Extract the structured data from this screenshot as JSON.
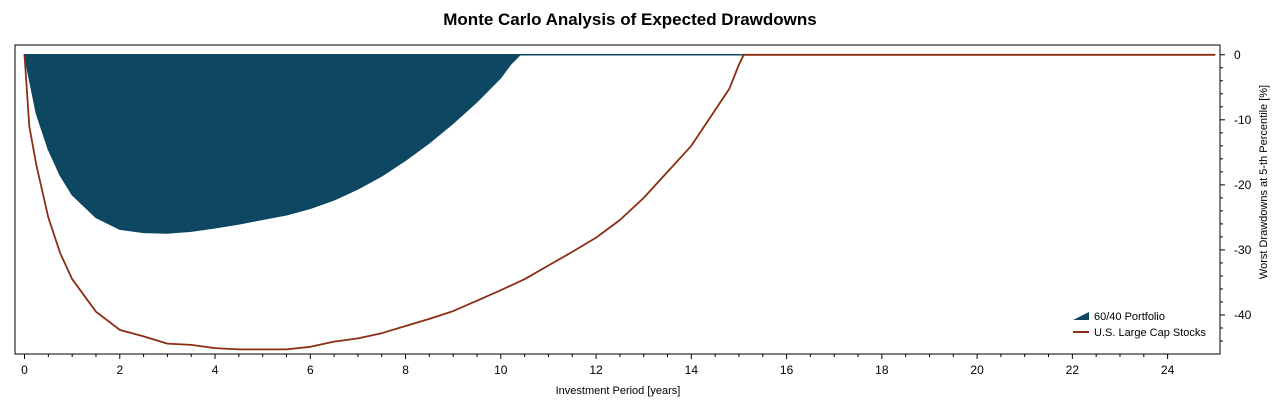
{
  "chart_data": {
    "type": "area",
    "title": "Monte Carlo Analysis of Expected Drawdowns",
    "xlabel": "Investment Period [years]",
    "ylabel": "Worst Drawdowns at 5-th Percentile [%]",
    "xlim": [
      -0.2,
      25.1
    ],
    "ylim": [
      -46,
      1.5
    ],
    "x_ticks": [
      "0",
      "2",
      "4",
      "6",
      "8",
      "10",
      "12",
      "14",
      "16",
      "18",
      "20",
      "22",
      "24"
    ],
    "y_ticks": [
      "0",
      "-10",
      "-20",
      "-30",
      "-40"
    ],
    "y_axis_side": "right",
    "legend_position": "bottom-right",
    "grid": false,
    "series": [
      {
        "name": "60/40 Portfolio",
        "style": "filled area",
        "color": "#0d4762",
        "x": [
          0,
          0.25,
          0.5,
          0.75,
          1,
          1.5,
          2,
          2.5,
          3,
          3.5,
          4,
          4.5,
          5,
          5.5,
          6,
          6.5,
          7,
          7.5,
          8,
          8.5,
          9,
          9.5,
          10,
          10.2,
          10.4,
          10.5,
          25
        ],
        "y": [
          0,
          -9,
          -14.5,
          -18.5,
          -21.5,
          -25,
          -26.8,
          -27.3,
          -27.4,
          -27.1,
          -26.6,
          -26,
          -25.3,
          -24.6,
          -23.6,
          -22.3,
          -20.6,
          -18.6,
          -16.2,
          -13.5,
          -10.5,
          -7.2,
          -3.5,
          -1.5,
          0,
          0,
          0
        ]
      },
      {
        "name": "U.S. Large Cap Stocks",
        "style": "line",
        "color": "#8b2e12",
        "x": [
          0,
          0.1,
          0.25,
          0.5,
          0.75,
          1,
          1.5,
          2,
          2.5,
          3,
          3.5,
          4,
          4.5,
          5,
          5.5,
          6,
          6.5,
          7,
          7.5,
          8,
          8.5,
          9,
          9.5,
          10,
          10.5,
          11,
          11.5,
          12,
          12.5,
          13,
          13.5,
          14,
          14.5,
          14.8,
          15,
          15.1,
          15.3,
          25
        ],
        "y": [
          0,
          -11,
          -17,
          -25,
          -30.5,
          -34.5,
          -39.5,
          -42.3,
          -43.3,
          -44.4,
          -44.6,
          -45.1,
          -45.3,
          -45.3,
          -45.3,
          -44.9,
          -44.1,
          -43.6,
          -42.8,
          -41.7,
          -40.6,
          -39.4,
          -37.8,
          -36.2,
          -34.5,
          -32.4,
          -30.3,
          -28.1,
          -25.4,
          -22,
          -18,
          -14,
          -8.5,
          -5.2,
          -1.5,
          0,
          0,
          0
        ]
      }
    ]
  }
}
